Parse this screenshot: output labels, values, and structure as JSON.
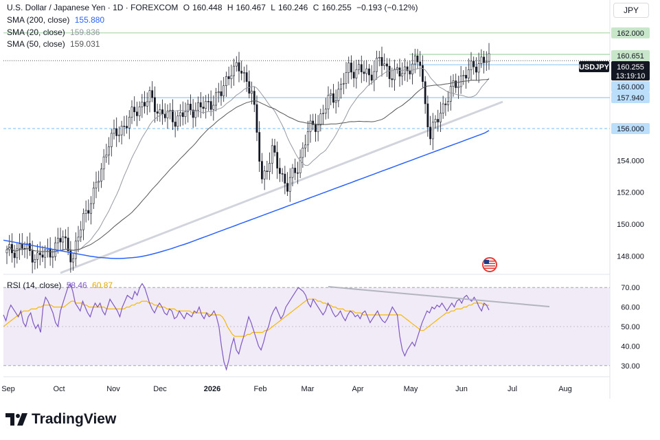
{
  "header": {
    "symbol_line": "U.S. Dollar / Japanese Yen · 1D · FOREXCOM",
    "o_label": "O",
    "o_value": "160.448",
    "h_label": "H",
    "h_value": "160.467",
    "l_label": "L",
    "l_value": "160.246",
    "c_label": "C",
    "c_value": "160.255",
    "change": "−0.193 (−0.12%)",
    "currency": "JPY"
  },
  "indicators": [
    {
      "label": "SMA (200, close)",
      "value": "155.880",
      "color": "#2962ff"
    },
    {
      "label": "SMA (20, close)",
      "value": "159.836",
      "color": "#9598a1"
    },
    {
      "label": "SMA (50, close)",
      "value": "159.031",
      "color": "#555555"
    }
  ],
  "rsi_legend": {
    "label": "RSI (14, close)",
    "value": "58.46",
    "value2": "60.87",
    "color1": "#7e57c2",
    "color2": "#f5b800"
  },
  "brand": {
    "name": "TradingView"
  },
  "chart_data": {
    "type": "candlestick",
    "symbol": "USDJPY",
    "interval": "1D",
    "last_price": "160.255",
    "countdown": "13:19:10",
    "price_axis": {
      "range": [
        146.9,
        163.2
      ],
      "ticks": [
        "162.000",
        "160.651",
        "160.255",
        "160.000",
        "157.940",
        "156.000",
        "154.000",
        "152.000",
        "150.000",
        "148.000"
      ],
      "highlighted": [
        {
          "value": 162.0,
          "label": "162.000",
          "bg": "#c8e6c9",
          "line": "#a5d6a7"
        },
        {
          "value": 160.651,
          "label": "160.651",
          "bg": "#c8e6c9",
          "line": "#a5d6a7"
        },
        {
          "value": 160.0,
          "label": "160.000",
          "bg": "#bbdefb",
          "line": "#90caf9"
        },
        {
          "value": 157.94,
          "label": "157.940",
          "bg": "#bbdefb",
          "line": "#90caf9"
        },
        {
          "value": 156.0,
          "label": "156.000",
          "bg": "#bbdefb",
          "line": "#90caf9"
        }
      ],
      "plain": [
        "154.000",
        "152.000",
        "150.000",
        "148.000"
      ]
    },
    "time_axis": {
      "labels": [
        "Sep",
        "Oct",
        "Nov",
        "Dec",
        "2026",
        "Feb",
        "Mar",
        "Apr",
        "May",
        "Jun",
        "Jul",
        "Aug"
      ],
      "bold": [
        "2026"
      ]
    },
    "rsi": {
      "range": [
        25,
        75
      ],
      "ticks": [
        "70.00",
        "60.00",
        "50.00",
        "40.00",
        "30.00"
      ],
      "band": [
        30,
        70
      ],
      "midline": 50,
      "rsi_values": [
        56,
        53,
        58,
        61,
        59,
        57,
        55,
        58,
        52,
        50,
        55,
        57,
        52,
        49,
        51,
        47,
        60,
        65,
        63,
        60,
        57,
        52,
        50,
        58,
        62,
        66,
        70,
        72,
        68,
        62,
        60,
        58,
        63,
        60,
        57,
        55,
        59,
        62,
        60,
        62,
        58,
        56,
        60,
        64,
        62,
        60,
        58,
        55,
        60,
        63,
        66,
        65,
        64,
        68,
        66,
        70,
        72,
        70,
        66,
        62,
        59,
        57,
        60,
        62,
        60,
        57,
        56,
        59,
        58,
        54,
        55,
        58,
        56,
        54,
        57,
        56,
        55,
        58,
        57,
        60,
        56,
        54,
        57,
        55,
        56,
        58,
        55,
        50,
        40,
        32,
        28,
        33,
        40,
        44,
        38,
        36,
        41,
        45,
        50,
        55,
        52,
        48,
        44,
        40,
        38,
        42,
        47,
        50,
        55,
        58,
        60,
        57,
        54,
        56,
        60,
        62,
        64,
        66,
        68,
        70,
        69,
        68,
        66,
        62,
        60,
        64,
        62,
        60,
        58,
        56,
        58,
        62,
        60,
        57,
        55,
        56,
        58,
        55,
        53,
        56,
        58,
        57,
        55,
        56,
        54,
        57,
        58,
        55,
        52,
        54,
        56,
        58,
        55,
        53,
        52,
        54,
        57,
        60,
        58,
        56,
        45,
        38,
        35,
        38,
        40,
        42,
        40,
        44,
        48,
        52,
        55,
        58,
        57,
        60,
        59,
        61,
        60,
        62,
        60,
        58,
        60,
        62,
        60,
        63,
        64,
        62,
        65,
        66,
        64,
        63,
        65,
        63,
        60,
        58,
        62,
        61,
        58.46
      ],
      "ma_values": [
        50,
        51,
        52,
        53,
        54,
        55,
        56,
        57,
        58,
        58,
        58,
        59,
        59,
        59,
        60,
        60,
        61,
        61,
        61,
        61,
        60,
        60,
        60,
        60,
        60,
        61,
        62,
        63,
        63,
        62,
        62,
        62,
        61,
        61,
        60,
        60,
        60,
        60,
        60,
        60,
        60,
        59,
        59,
        59,
        59,
        59,
        59,
        59,
        59,
        60,
        60,
        61,
        61,
        62,
        62,
        63,
        63,
        63,
        62,
        62,
        61,
        61,
        60,
        60,
        60,
        59,
        59,
        59,
        59,
        58,
        58,
        58,
        58,
        58,
        58,
        57,
        57,
        57,
        57,
        57,
        57,
        57,
        56,
        56,
        56,
        56,
        56,
        55,
        53,
        50,
        48,
        46,
        45,
        45,
        45,
        45,
        45,
        46,
        46,
        47,
        47,
        47,
        47,
        47,
        48,
        48,
        49,
        50,
        51,
        52,
        53,
        54,
        55,
        56,
        57,
        58,
        59,
        60,
        61,
        62,
        63,
        64,
        64,
        64,
        64,
        63,
        63,
        62,
        62,
        61,
        61,
        60,
        60,
        59,
        59,
        59,
        58,
        58,
        58,
        58,
        57,
        57,
        57,
        56,
        56,
        56,
        56,
        56,
        56,
        56,
        56,
        56,
        56,
        56,
        56,
        56,
        56,
        56,
        56,
        55,
        54,
        53,
        52,
        51,
        50,
        49,
        48,
        48,
        49,
        50,
        51,
        52,
        53,
        54,
        55,
        56,
        57,
        57,
        58,
        58,
        59,
        59,
        59,
        60,
        60,
        61,
        61,
        62,
        62,
        62,
        62,
        61,
        61,
        60.87
      ]
    },
    "candles": [],
    "sma200": [
      149.0,
      148.95,
      148.9,
      148.85,
      148.8,
      148.75,
      148.7,
      148.65,
      148.6,
      148.55,
      148.5,
      148.45,
      148.4,
      148.35,
      148.3,
      148.25,
      148.2,
      148.15,
      148.1,
      148.05,
      148.0,
      147.96,
      147.92,
      147.9,
      147.88,
      147.86,
      147.85,
      147.85,
      147.86,
      147.88,
      147.9,
      147.93,
      147.97,
      148.02,
      148.08,
      148.15,
      148.22,
      148.3,
      148.38,
      148.46,
      148.55,
      148.64,
      148.73,
      148.82,
      148.92,
      149.02,
      149.12,
      149.22,
      149.32,
      149.42,
      149.52,
      149.62,
      149.72,
      149.82,
      149.92,
      150.02,
      150.12,
      150.22,
      150.32,
      150.42,
      150.52,
      150.62,
      150.72,
      150.82,
      150.92,
      151.02,
      151.12,
      151.22,
      151.32,
      151.42,
      151.52,
      151.62,
      151.72,
      151.82,
      151.92,
      152.02,
      152.12,
      152.22,
      152.32,
      152.42,
      152.52,
      152.62,
      152.72,
      152.82,
      152.92,
      153.02,
      153.12,
      153.22,
      153.32,
      153.42,
      153.52,
      153.62,
      153.72,
      153.82,
      153.92,
      154.02,
      154.12,
      154.22,
      154.32,
      154.42,
      154.52,
      154.62,
      154.72,
      154.82,
      154.92,
      155.02,
      155.12,
      155.22,
      155.32,
      155.42,
      155.52,
      155.62,
      155.72,
      155.88
    ],
    "sma200_start_bar": 0
  }
}
